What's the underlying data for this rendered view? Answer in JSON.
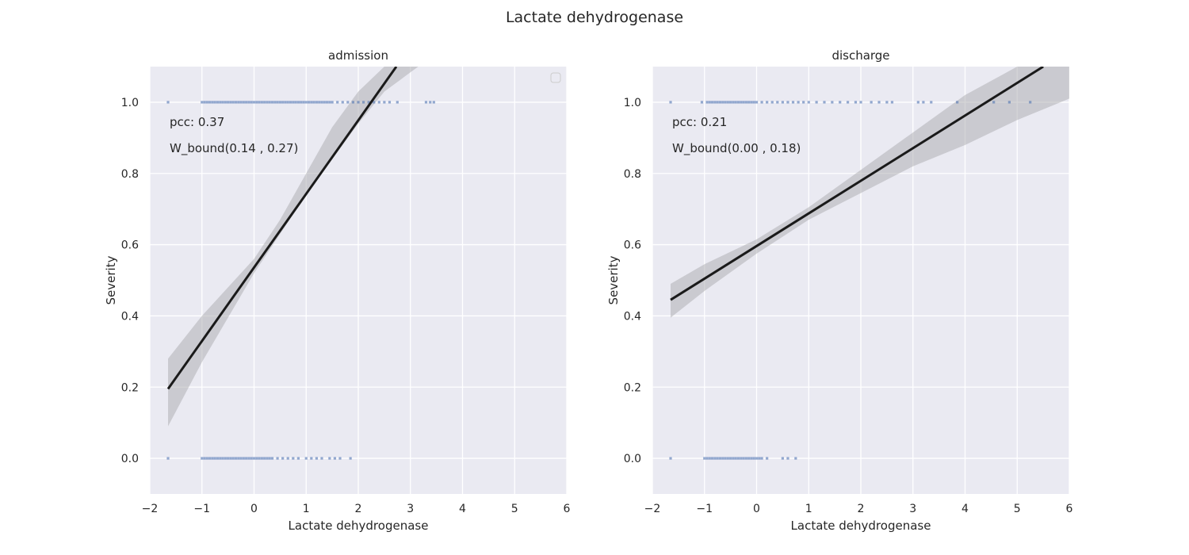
{
  "figure": {
    "title": "Lactate dehydrogenase"
  },
  "chart_data": [
    {
      "type": "scatter",
      "panel": "left",
      "title": "admission",
      "xlabel": "Lactate dehydrogenase",
      "ylabel": "Severity",
      "xlim": [
        -2,
        6
      ],
      "ylim": [
        -0.1,
        1.1
      ],
      "xticks": [
        "−2",
        "−1",
        "0",
        "1",
        "2",
        "3",
        "4",
        "5",
        "6"
      ],
      "xtick_values": [
        -2,
        -1,
        0,
        1,
        2,
        3,
        4,
        5,
        6
      ],
      "yticks": [
        "0.0",
        "0.2",
        "0.4",
        "0.6",
        "0.8",
        "1.0"
      ],
      "ytick_values": [
        0,
        0.2,
        0.4,
        0.6,
        0.8,
        1.0
      ],
      "grid": true,
      "legend": "top-right",
      "annotations": [
        "pcc: 0.37",
        "W_bound(0.14      , 0.27)"
      ],
      "points_y1": [
        -1.65,
        -1.0,
        -0.95,
        -0.9,
        -0.85,
        -0.8,
        -0.75,
        -0.7,
        -0.65,
        -0.6,
        -0.55,
        -0.5,
        -0.45,
        -0.4,
        -0.35,
        -0.3,
        -0.25,
        -0.2,
        -0.15,
        -0.1,
        -0.05,
        0.0,
        0.05,
        0.1,
        0.15,
        0.2,
        0.25,
        0.3,
        0.35,
        0.4,
        0.45,
        0.5,
        0.55,
        0.6,
        0.65,
        0.7,
        0.75,
        0.8,
        0.85,
        0.9,
        0.95,
        1.0,
        1.05,
        1.1,
        1.15,
        1.2,
        1.25,
        1.3,
        1.35,
        1.4,
        1.45,
        1.5,
        1.6,
        1.7,
        1.8,
        1.9,
        2.0,
        2.1,
        2.2,
        2.3,
        2.4,
        2.5,
        2.6,
        2.75,
        3.3,
        3.38,
        3.45
      ],
      "points_y0": [
        -1.65,
        -1.0,
        -0.95,
        -0.9,
        -0.85,
        -0.8,
        -0.75,
        -0.7,
        -0.65,
        -0.6,
        -0.55,
        -0.5,
        -0.45,
        -0.4,
        -0.35,
        -0.3,
        -0.25,
        -0.2,
        -0.15,
        -0.1,
        -0.05,
        0.0,
        0.05,
        0.1,
        0.15,
        0.2,
        0.25,
        0.3,
        0.35,
        0.45,
        0.55,
        0.65,
        0.75,
        0.85,
        1.0,
        1.1,
        1.2,
        1.3,
        1.45,
        1.55,
        1.65,
        1.85
      ],
      "fit": {
        "x": [
          -1.65,
          2.73
        ],
        "y": [
          0.195,
          1.1
        ]
      },
      "ci": {
        "x": [
          -1.65,
          -1.0,
          0.0,
          0.5,
          1.0,
          1.5,
          2.0,
          2.5,
          3.15
        ],
        "lower": [
          0.09,
          0.27,
          0.52,
          0.63,
          0.74,
          0.84,
          0.94,
          1.03,
          1.1
        ],
        "upper": [
          0.28,
          0.4,
          0.56,
          0.67,
          0.8,
          0.93,
          1.03,
          1.1,
          1.1
        ]
      }
    },
    {
      "type": "scatter",
      "panel": "right",
      "title": "discharge",
      "xlabel": "Lactate dehydrogenase",
      "ylabel": "Severity",
      "xlim": [
        -2,
        6
      ],
      "ylim": [
        -0.1,
        1.1
      ],
      "xticks": [
        "−2",
        "−1",
        "0",
        "1",
        "2",
        "3",
        "4",
        "5",
        "6"
      ],
      "xtick_values": [
        -2,
        -1,
        0,
        1,
        2,
        3,
        4,
        5,
        6
      ],
      "yticks": [
        "0.0",
        "0.2",
        "0.4",
        "0.6",
        "0.8",
        "1.0"
      ],
      "ytick_values": [
        0,
        0.2,
        0.4,
        0.6,
        0.8,
        1.0
      ],
      "grid": true,
      "annotations": [
        "pcc: 0.21",
        "W_bound(0.00      , 0.18)"
      ],
      "points_y1": [
        -1.65,
        -1.05,
        -0.95,
        -0.9,
        -0.85,
        -0.8,
        -0.75,
        -0.7,
        -0.65,
        -0.6,
        -0.55,
        -0.5,
        -0.45,
        -0.4,
        -0.35,
        -0.3,
        -0.25,
        -0.2,
        -0.15,
        -0.1,
        -0.05,
        0.0,
        0.1,
        0.2,
        0.3,
        0.4,
        0.5,
        0.6,
        0.7,
        0.8,
        0.9,
        1.0,
        1.15,
        1.3,
        1.45,
        1.6,
        1.75,
        1.9,
        2.0,
        2.2,
        2.35,
        2.5,
        2.6,
        3.1,
        3.2,
        3.35,
        3.85,
        4.55,
        4.85,
        5.25
      ],
      "points_y0": [
        -1.65,
        -1.0,
        -0.95,
        -0.9,
        -0.85,
        -0.8,
        -0.75,
        -0.7,
        -0.65,
        -0.6,
        -0.55,
        -0.5,
        -0.45,
        -0.4,
        -0.35,
        -0.3,
        -0.25,
        -0.2,
        -0.15,
        -0.1,
        -0.05,
        0.0,
        0.05,
        0.1,
        0.2,
        0.5,
        0.6,
        0.75
      ],
      "fit": {
        "x": [
          -1.65,
          5.5
        ],
        "y": [
          0.445,
          1.1
        ]
      },
      "ci": {
        "x": [
          -1.65,
          -1.0,
          0.0,
          1.0,
          2.0,
          3.0,
          4.0,
          5.0,
          6.0
        ],
        "lower": [
          0.395,
          0.47,
          0.575,
          0.67,
          0.745,
          0.82,
          0.88,
          0.95,
          1.01
        ],
        "upper": [
          0.49,
          0.545,
          0.615,
          0.705,
          0.81,
          0.915,
          1.02,
          1.1,
          1.1
        ]
      }
    }
  ]
}
